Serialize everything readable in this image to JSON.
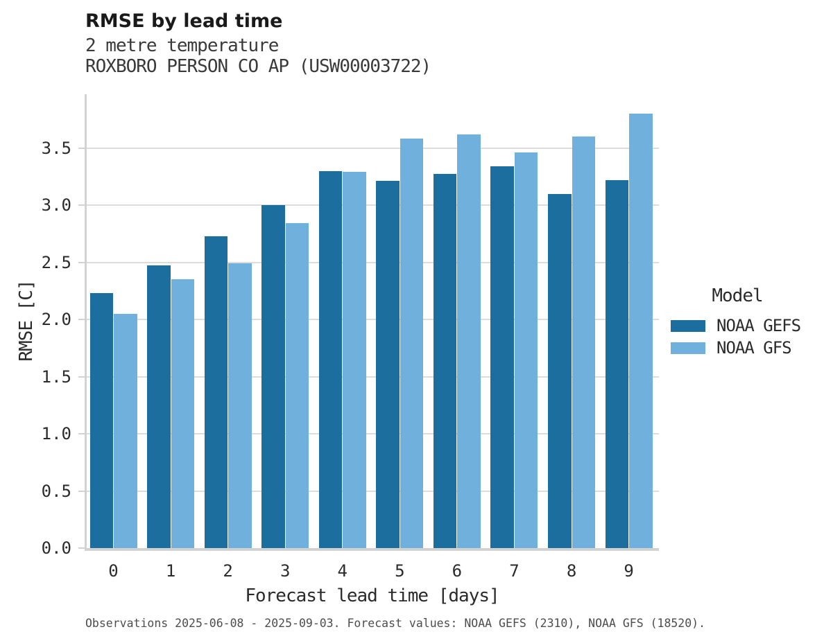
{
  "header": {
    "title": "RMSE by lead time",
    "subtitle_line1": "2 metre temperature",
    "subtitle_line2": "ROXBORO PERSON CO AP (USW00003722)"
  },
  "chart_data": {
    "type": "bar",
    "title": "RMSE by lead time",
    "subtitle": "2 metre temperature — ROXBORO PERSON CO AP (USW00003722)",
    "xlabel": "Forecast lead time [days]",
    "ylabel": "RMSE [C]",
    "categories": [
      "0",
      "1",
      "2",
      "3",
      "4",
      "5",
      "6",
      "7",
      "8",
      "9"
    ],
    "series": [
      {
        "name": "NOAA GEFS",
        "color": "#1b6e9e",
        "values": [
          2.23,
          2.47,
          2.73,
          3.0,
          3.3,
          3.21,
          3.27,
          3.34,
          3.1,
          3.22
        ]
      },
      {
        "name": "NOAA GFS",
        "color": "#6fb1dc",
        "values": [
          2.05,
          2.35,
          2.49,
          2.84,
          3.29,
          3.58,
          3.62,
          3.46,
          3.6,
          3.8
        ]
      }
    ],
    "ylim": [
      0,
      3.97
    ],
    "yticks": [
      0.0,
      0.5,
      1.0,
      1.5,
      2.0,
      2.5,
      3.0,
      3.5
    ],
    "grid": true,
    "grid_color": "#dcdcdc",
    "axis_color": "#d2d2d2",
    "legend_title": "Model",
    "legend_position": "right"
  },
  "legend": {
    "title": "Model",
    "items": [
      {
        "label": "NOAA GEFS",
        "color": "#1b6e9e"
      },
      {
        "label": "NOAA GFS",
        "color": "#6fb1dc"
      }
    ]
  },
  "caption": "Observations 2025-06-08 - 2025-09-03. Forecast values: NOAA GEFS (2310), NOAA GFS (18520)."
}
